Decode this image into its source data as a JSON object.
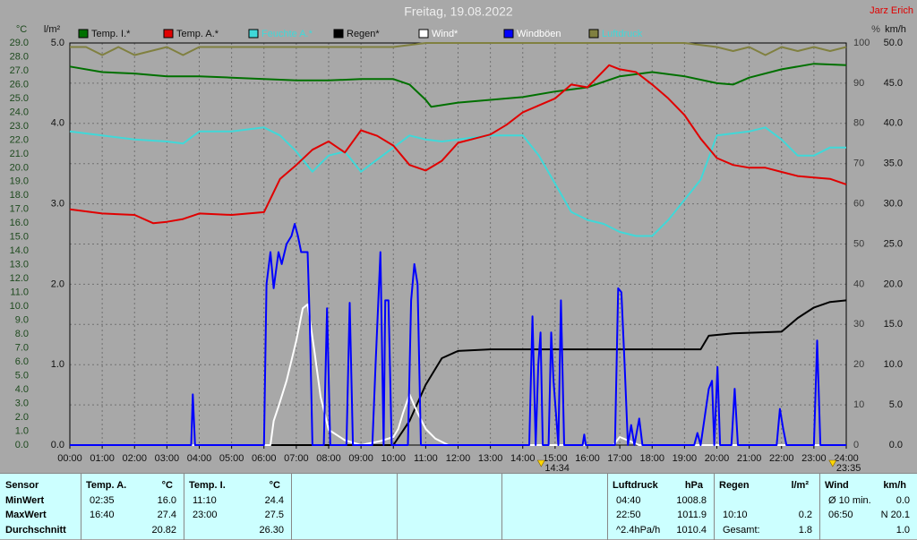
{
  "chart_data": {
    "type": "line",
    "title": "Freitag, 19.08.2022",
    "credit": "Jarz Erich",
    "xlim": [
      0,
      24
    ],
    "xticks": [
      {
        "value": 0,
        "label": "00:00"
      },
      {
        "value": 1,
        "label": "01:00"
      },
      {
        "value": 2,
        "label": "02:00"
      },
      {
        "value": 3,
        "label": "03:00"
      },
      {
        "value": 4,
        "label": "04:00"
      },
      {
        "value": 5,
        "label": "05:00"
      },
      {
        "value": 6,
        "label": "06:00"
      },
      {
        "value": 7,
        "label": "07:00"
      },
      {
        "value": 8,
        "label": "08:00"
      },
      {
        "value": 9,
        "label": "09:00"
      },
      {
        "value": 10,
        "label": "10:00"
      },
      {
        "value": 11,
        "label": "11:00"
      },
      {
        "value": 12,
        "label": "12:00"
      },
      {
        "value": 13,
        "label": "13:00"
      },
      {
        "value": 14,
        "label": "14:00"
      },
      {
        "value": 15,
        "label": "15:00"
      },
      {
        "value": 16,
        "label": "16:00"
      },
      {
        "value": 17,
        "label": "17:00"
      },
      {
        "value": 18,
        "label": "18:00"
      },
      {
        "value": 19,
        "label": "19:00"
      },
      {
        "value": 20,
        "label": "20:00"
      },
      {
        "value": 21,
        "label": "21:00"
      },
      {
        "value": 22,
        "label": "22:00"
      },
      {
        "value": 23,
        "label": "23:00"
      },
      {
        "value": 24,
        "label": "24:00"
      }
    ],
    "grid": true,
    "axes": [
      {
        "label": "°C",
        "color": "#1e4a1e",
        "ylim": [
          0,
          29
        ],
        "yticks": [
          {
            "value": 0,
            "label": "0.0"
          },
          {
            "value": 1,
            "label": "1.0"
          },
          {
            "value": 2,
            "label": "2.0"
          },
          {
            "value": 3,
            "label": "3.0"
          },
          {
            "value": 4,
            "label": "4.0"
          },
          {
            "value": 5,
            "label": "5.0"
          },
          {
            "value": 6,
            "label": "6.0"
          },
          {
            "value": 7,
            "label": "7.0"
          },
          {
            "value": 8,
            "label": "8.0"
          },
          {
            "value": 9,
            "label": "9.0"
          },
          {
            "value": 10,
            "label": "10.0"
          },
          {
            "value": 11,
            "label": "11.0"
          },
          {
            "value": 12,
            "label": "12.0"
          },
          {
            "value": 13,
            "label": "13.0"
          },
          {
            "value": 14,
            "label": "14.0"
          },
          {
            "value": 15,
            "label": "15.0"
          },
          {
            "value": 16,
            "label": "16.0"
          },
          {
            "value": 17,
            "label": "17.0"
          },
          {
            "value": 18,
            "label": "18.0"
          },
          {
            "value": 19,
            "label": "19.0"
          },
          {
            "value": 20,
            "label": "20.0"
          },
          {
            "value": 21,
            "label": "21.0"
          },
          {
            "value": 22,
            "label": "22.0"
          },
          {
            "value": 23,
            "label": "23.0"
          },
          {
            "value": 24,
            "label": "24.0"
          },
          {
            "value": 25,
            "label": "25.0"
          },
          {
            "value": 26,
            "label": "26.0"
          },
          {
            "value": 27,
            "label": "27.0"
          },
          {
            "value": 28,
            "label": "28.0"
          },
          {
            "value": 29,
            "label": "29.0"
          }
        ]
      },
      {
        "label": "l/m²",
        "color": "#111111",
        "ylim": [
          0,
          5
        ],
        "yticks": [
          {
            "value": 0,
            "label": "0.0"
          },
          {
            "value": 1,
            "label": "1.0"
          },
          {
            "value": 2,
            "label": "2.0"
          },
          {
            "value": 3,
            "label": "3.0"
          },
          {
            "value": 4,
            "label": "4.0"
          },
          {
            "value": 5,
            "label": "5.0"
          }
        ]
      },
      {
        "label": "%",
        "color": "#3a3a3a",
        "ylim": [
          0,
          100
        ],
        "yticks": [
          0,
          10,
          20,
          30,
          40,
          50,
          60,
          70,
          80,
          90,
          100
        ]
      },
      {
        "label": "km/h",
        "color": "#111111",
        "ylim": [
          0,
          50
        ],
        "yticks": [
          {
            "value": 0,
            "label": "0.0"
          },
          {
            "value": 5,
            "label": "5.0"
          },
          {
            "value": 10,
            "label": "10.0"
          },
          {
            "value": 15,
            "label": "15.0"
          },
          {
            "value": 20,
            "label": "20.0"
          },
          {
            "value": 25,
            "label": "25.0"
          },
          {
            "value": 30,
            "label": "30.0"
          },
          {
            "value": 35,
            "label": "35.0"
          },
          {
            "value": 40,
            "label": "40.0"
          },
          {
            "value": 45,
            "label": "45.0"
          },
          {
            "value": 50,
            "label": "50.0"
          }
        ]
      }
    ],
    "series": [
      {
        "name": "Temp. I.*",
        "color": "#007000",
        "label_color": "#111111",
        "axis": 0,
        "x": [
          0,
          1,
          2,
          3,
          4,
          5,
          6,
          7,
          8,
          9,
          10,
          10.5,
          11,
          11.17,
          12,
          13,
          14,
          15,
          16,
          17,
          18,
          19,
          20,
          20.5,
          21,
          22,
          23,
          24
        ],
        "values": [
          27.3,
          26.9,
          26.8,
          26.6,
          26.6,
          26.5,
          26.4,
          26.3,
          26.3,
          26.4,
          26.4,
          26.0,
          24.9,
          24.4,
          24.7,
          24.9,
          25.1,
          25.5,
          25.8,
          26.6,
          26.9,
          26.6,
          26.1,
          26.0,
          26.5,
          27.1,
          27.5,
          27.4
        ]
      },
      {
        "name": "Temp. A.*",
        "color": "#e00000",
        "label_color": "#111111",
        "axis": 0,
        "x": [
          0,
          1,
          2,
          2.58,
          3,
          3.5,
          4,
          5,
          6,
          6.5,
          7,
          7.5,
          8,
          8.5,
          9,
          9.5,
          10,
          10.5,
          11,
          11.5,
          12,
          12.5,
          13,
          13.5,
          14,
          14.5,
          15,
          15.5,
          16,
          16.67,
          17,
          17.5,
          18,
          18.5,
          19,
          19.5,
          20,
          20.5,
          21,
          21.5,
          22,
          22.5,
          23,
          23.5,
          24
        ],
        "values": [
          17.0,
          16.7,
          16.6,
          16.0,
          16.1,
          16.3,
          16.7,
          16.6,
          16.8,
          19.2,
          20.2,
          21.3,
          21.9,
          21.1,
          22.7,
          22.3,
          21.6,
          20.2,
          19.8,
          20.5,
          21.8,
          22.1,
          22.4,
          23.1,
          24.0,
          24.5,
          25.0,
          26.0,
          25.8,
          27.4,
          27.1,
          26.9,
          26.0,
          25.0,
          23.8,
          22.1,
          20.7,
          20.2,
          20.0,
          20.0,
          19.7,
          19.4,
          19.3,
          19.2,
          18.8
        ]
      },
      {
        "name": "Feuchte A.*",
        "color": "#40d8d8",
        "label_color": "#40d8d8",
        "axis": 2,
        "x": [
          0,
          1,
          2,
          3,
          3.5,
          4,
          5,
          6,
          6.5,
          7,
          7.5,
          8,
          8.5,
          9,
          9.5,
          10,
          10.5,
          11,
          11.5,
          12,
          13,
          14,
          14.5,
          15,
          15.5,
          16,
          16.5,
          17,
          17.5,
          18,
          18.5,
          19,
          19.5,
          20,
          21,
          21.5,
          22,
          22.5,
          23,
          23.5,
          24
        ],
        "values": [
          78,
          77,
          76,
          75.5,
          75,
          78,
          78,
          79,
          77,
          73,
          68,
          72,
          73,
          68,
          71,
          74,
          77,
          76,
          75.5,
          76,
          77,
          77,
          72,
          65,
          58,
          56,
          55,
          53,
          52,
          52,
          56,
          61,
          66,
          77,
          78,
          79,
          76,
          72,
          72,
          74,
          74
        ]
      },
      {
        "name": "Regen*",
        "color": "#000000",
        "label_color": "#111111",
        "axis": 1,
        "x": [
          0,
          10,
          10.5,
          11,
          11.5,
          12,
          13,
          19.5,
          19.75,
          20.5,
          22,
          22.5,
          23,
          23.5,
          24
        ],
        "values": [
          0,
          0,
          0.3,
          0.75,
          1.08,
          1.17,
          1.19,
          1.19,
          1.36,
          1.39,
          1.41,
          1.58,
          1.71,
          1.78,
          1.8
        ]
      },
      {
        "name": "Wind*",
        "color": "#ffffff",
        "label_color": "#ffffff",
        "axis": 3,
        "x": [
          0,
          6.2,
          6.3,
          6.45,
          6.7,
          7.0,
          7.2,
          7.35,
          7.55,
          7.75,
          8.0,
          8.5,
          9.0,
          9.6,
          10.0,
          10.15,
          10.3,
          10.5,
          10.75,
          11.0,
          11.3,
          11.7,
          16.8,
          17.0,
          17.3,
          17.6,
          24
        ],
        "values": [
          0,
          0,
          3,
          4.8,
          8,
          13,
          17,
          17.5,
          12,
          6,
          1.9,
          0.6,
          0,
          0.5,
          1,
          2,
          4,
          6.3,
          4,
          2,
          0.8,
          0,
          0,
          1,
          0.5,
          0,
          0
        ]
      },
      {
        "name": "Windböen",
        "color": "#0000ff",
        "label_color": "#ffffff",
        "axis": 3,
        "x": [
          0,
          3.75,
          3.8,
          3.87,
          6.0,
          6.08,
          6.2,
          6.3,
          6.45,
          6.55,
          6.7,
          6.85,
          6.95,
          7.05,
          7.15,
          7.35,
          7.42,
          7.5,
          7.85,
          7.95,
          8.05,
          8.55,
          8.65,
          8.75,
          9.35,
          9.45,
          9.6,
          9.7,
          9.75,
          9.85,
          9.95,
          10.45,
          10.55,
          10.65,
          10.75,
          10.85,
          14.2,
          14.3,
          14.4,
          14.48,
          14.55,
          14.62,
          14.8,
          14.88,
          14.95,
          15.1,
          15.18,
          15.28,
          15.85,
          15.9,
          15.95,
          16.85,
          16.95,
          17.05,
          17.15,
          17.25,
          17.35,
          17.45,
          17.6,
          17.7,
          19.3,
          19.4,
          19.5,
          19.75,
          19.85,
          19.92,
          20.02,
          20.1,
          20.45,
          20.55,
          20.65,
          21.85,
          21.95,
          22.05,
          22.15,
          23.0,
          23.1,
          23.2,
          24
        ],
        "values": [
          0,
          0,
          6.3,
          0,
          0,
          20,
          24,
          19.5,
          24,
          22.5,
          25,
          26,
          27.5,
          26,
          24,
          24,
          15,
          0,
          0,
          17,
          0,
          0,
          17.7,
          0,
          0,
          10,
          24,
          0,
          18,
          18,
          0,
          0,
          18,
          22.5,
          20,
          0,
          0,
          16,
          0,
          10,
          14,
          0,
          0,
          14,
          8,
          0,
          18,
          0,
          0,
          1.3,
          0,
          0,
          19.5,
          19,
          10,
          0,
          2.5,
          0,
          3.3,
          0,
          0,
          1.5,
          0,
          7,
          8,
          0,
          9.7,
          0,
          0,
          7,
          0,
          0,
          4.5,
          2,
          0,
          0,
          13,
          0,
          0
        ]
      },
      {
        "name": "Luftdruck",
        "color": "#808040",
        "label_color": "#40d8d8",
        "axis": 2,
        "x": [
          0,
          0.5,
          1,
          1.5,
          2,
          2.5,
          3,
          3.5,
          4,
          5,
          6,
          7,
          8,
          9,
          10,
          11,
          12,
          13,
          14,
          15,
          16,
          17,
          18,
          19,
          20,
          20.5,
          21,
          21.5,
          22,
          22.5,
          23,
          23.5,
          24
        ],
        "values": [
          99,
          99,
          97,
          99,
          97,
          98,
          99,
          97,
          99,
          99,
          99,
          99,
          99,
          99,
          99,
          100,
          100,
          100,
          100,
          100,
          100,
          100,
          100,
          100,
          99,
          98,
          99,
          97,
          99,
          98,
          99,
          98,
          99
        ]
      }
    ],
    "sun_events": [
      {
        "x": 14.57,
        "label": "14:34"
      },
      {
        "x": 23.58,
        "label": "23:35"
      }
    ]
  },
  "table": {
    "row_labels": [
      "Sensor",
      "MinWert",
      "MaxWert",
      "Durchschnitt"
    ],
    "sections": [
      {
        "head": [
          "Temp. A.",
          "°C"
        ],
        "rows": [
          [
            "02:35",
            "16.0"
          ],
          [
            "16:40",
            "27.4"
          ],
          [
            null,
            "20.82"
          ]
        ]
      },
      {
        "head": [
          "Temp. I.",
          "°C"
        ],
        "rows": [
          [
            "11:10",
            "24.4"
          ],
          [
            "23:00",
            "27.5"
          ],
          [
            null,
            "26.30"
          ]
        ]
      },
      {
        "head": [
          "Luftdruck",
          "hPa"
        ],
        "rows": [
          [
            "04:40",
            "1008.8"
          ],
          [
            "22:50",
            "1011.9"
          ],
          [
            "^2.4hPa/h",
            "1010.4"
          ]
        ]
      },
      {
        "head": [
          "Regen",
          "l/m²"
        ],
        "rows": [
          [
            null,
            null
          ],
          [
            "10:10",
            "0.2"
          ],
          [
            "Gesamt:",
            "1.8"
          ]
        ]
      },
      {
        "head": [
          "Wind",
          "km/h"
        ],
        "rows": [
          [
            "Ø 10 min.",
            "0.0"
          ],
          [
            "06:50",
            "N 20.1"
          ],
          [
            null,
            "1.0"
          ]
        ]
      }
    ]
  }
}
